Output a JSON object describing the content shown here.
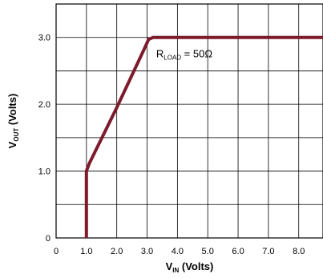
{
  "chart_data": {
    "type": "line",
    "x_axis": {
      "label_main": "V",
      "label_sub": "IN",
      "label_rest": " (Volts)",
      "range": [
        0,
        8.8
      ],
      "ticks": [
        0,
        1.0,
        2.0,
        3.0,
        4.0,
        5.0,
        6.0,
        7.0,
        8.0
      ],
      "tick_labels": [
        "0",
        "1.0",
        "2.0",
        "3.0",
        "4.0",
        "5.0",
        "6.0",
        "7.0",
        "8.0"
      ],
      "grid_step": 1.0
    },
    "y_axis": {
      "label_main": "V",
      "label_sub": "OUT",
      "label_rest": " (Volts)",
      "range": [
        0,
        3.5
      ],
      "ticks": [
        0,
        1.0,
        2.0,
        3.0
      ],
      "tick_labels": [
        "0",
        "1.0",
        "2.0",
        "3.0"
      ],
      "grid_step": 0.5
    },
    "grid": true,
    "series": [
      {
        "color": "#7d1a2c",
        "x": [
          1.0,
          1.0,
          1.0,
          1.1,
          2.0,
          2.9,
          3.05,
          3.2,
          4.0,
          6.0,
          8.8
        ],
        "y": [
          0.0,
          0.5,
          1.0,
          1.12,
          1.95,
          2.82,
          2.97,
          3.0,
          3.0,
          3.0,
          3.0
        ]
      }
    ],
    "annotation": {
      "main": "R",
      "sub": "LOAD",
      "rest": " = 50Ω",
      "anchor_x": 3.3,
      "anchor_y": 2.7
    }
  }
}
